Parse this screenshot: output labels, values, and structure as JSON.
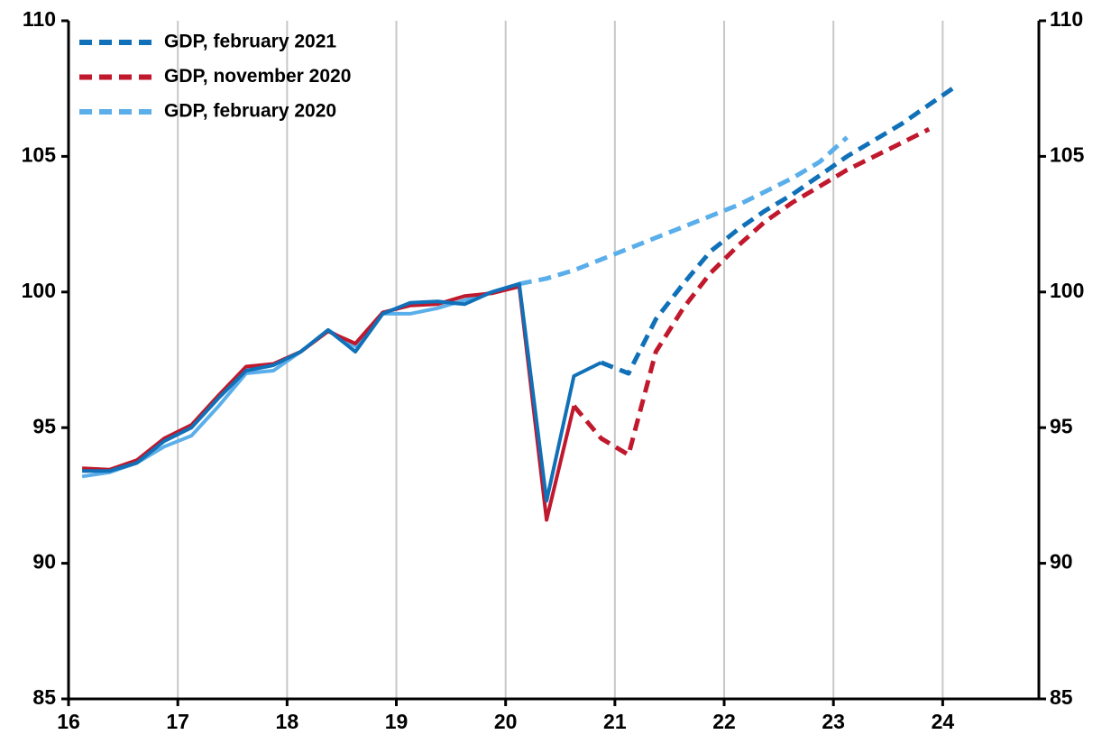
{
  "chart_data": {
    "type": "line",
    "x": [
      16.125,
      16.375,
      16.625,
      16.875,
      17.125,
      17.375,
      17.625,
      17.875,
      18.125,
      18.375,
      18.625,
      18.875,
      19.125,
      19.375,
      19.625,
      19.875,
      20.125,
      20.375,
      20.625,
      20.875,
      21.125,
      21.375,
      21.625,
      21.875,
      22.125,
      22.375,
      22.625,
      22.875,
      23.125,
      23.375,
      23.625,
      23.875,
      24.125
    ],
    "xlim": [
      16,
      24.88
    ],
    "xticks": [
      16,
      17,
      18,
      19,
      20,
      21,
      22,
      23,
      24
    ],
    "ylim": [
      85,
      110
    ],
    "yticks": [
      85,
      90,
      95,
      100,
      105,
      110
    ],
    "y2lim": [
      85,
      110
    ],
    "y2ticks": [
      85,
      90,
      95,
      100,
      105,
      110
    ],
    "grid": true,
    "legend": "upper left",
    "series": [
      {
        "name": "GDP, february 2021",
        "color": "#1070b8",
        "values": [
          93.4,
          93.4,
          93.7,
          94.5,
          95.0,
          96.1,
          97.1,
          97.3,
          97.8,
          98.6,
          97.8,
          99.2,
          99.6,
          99.65,
          99.55,
          100.0,
          100.3,
          92.3,
          96.9,
          97.4,
          null,
          null,
          null,
          null,
          null,
          null,
          null,
          null,
          null,
          null,
          null,
          null,
          null
        ],
        "forecast_values": [
          null,
          null,
          null,
          null,
          null,
          null,
          null,
          null,
          null,
          null,
          null,
          null,
          null,
          null,
          null,
          null,
          null,
          null,
          null,
          97.4,
          97.0,
          99.0,
          100.3,
          101.5,
          102.3,
          103.0,
          103.6,
          104.3,
          105.0,
          105.6,
          106.2,
          106.9,
          107.6
        ]
      },
      {
        "name": "GDP, november 2020",
        "color": "#c0182c",
        "values": [
          93.5,
          93.45,
          93.8,
          94.6,
          95.1,
          96.2,
          97.25,
          97.35,
          97.8,
          98.55,
          98.1,
          99.25,
          99.5,
          99.55,
          99.85,
          99.95,
          100.2,
          91.6,
          95.8,
          null,
          null,
          null,
          null,
          null,
          null,
          null,
          null,
          null,
          null,
          null,
          null,
          null,
          null
        ],
        "forecast_values": [
          null,
          null,
          null,
          null,
          null,
          null,
          null,
          null,
          null,
          null,
          null,
          null,
          null,
          null,
          null,
          null,
          null,
          null,
          95.8,
          94.6,
          94.0,
          97.8,
          99.4,
          100.7,
          101.7,
          102.6,
          103.3,
          103.9,
          104.5,
          105.0,
          105.5,
          106.0,
          null
        ]
      },
      {
        "name": "GDP, february 2020",
        "color": "#5aaeea",
        "values": [
          93.2,
          93.35,
          93.7,
          94.3,
          94.7,
          95.8,
          97.0,
          97.1,
          97.8,
          98.6,
          98.0,
          99.2,
          99.2,
          99.4,
          99.7,
          100.0,
          100.3,
          null,
          null,
          null,
          null,
          null,
          null,
          null,
          null,
          null,
          null,
          null,
          null,
          null,
          null,
          null,
          null
        ],
        "forecast_values": [
          null,
          null,
          null,
          null,
          null,
          null,
          null,
          null,
          null,
          null,
          null,
          null,
          null,
          null,
          null,
          null,
          100.3,
          100.5,
          100.8,
          101.2,
          101.6,
          102.0,
          102.4,
          102.8,
          103.2,
          103.7,
          104.2,
          104.8,
          105.7,
          null,
          null,
          null,
          null
        ]
      }
    ]
  }
}
